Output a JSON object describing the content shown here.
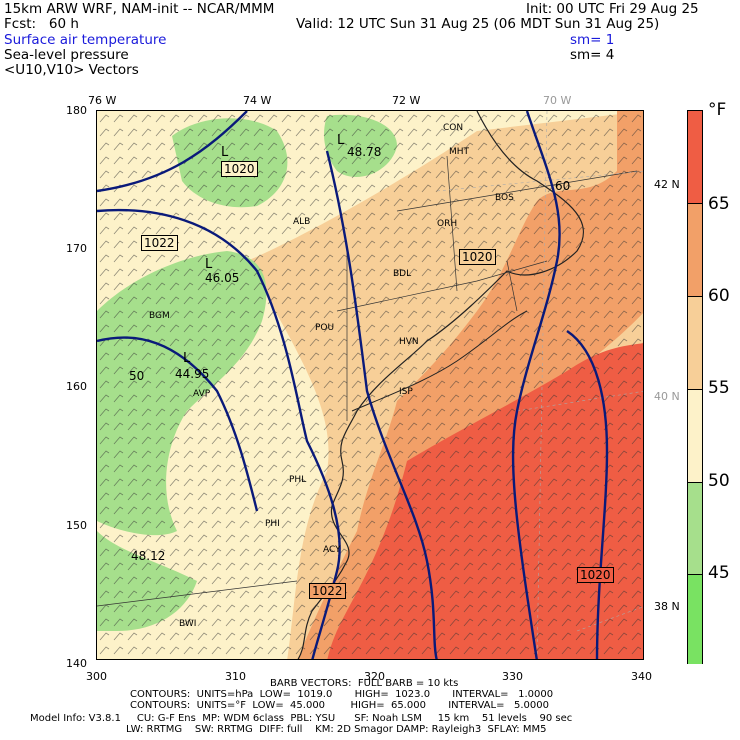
{
  "header": {
    "model_line": "15km ARW WRF, NAM-init -- NCAR/MMM",
    "init": "Init: 00 UTC Fri 29 Aug 25",
    "fcst": "Fcst:   60 h",
    "valid": "Valid: 12 UTC Sun 31 Aug 25 (06 MDT Sun 31 Aug 25)",
    "field1": "Surface air temperature",
    "field1_sm": "sm= 1",
    "field2": "Sea-level pressure",
    "field2_sm": "sm= 4",
    "field3": "<U10,V10> Vectors"
  },
  "map": {
    "lon_labels": [
      "76 W",
      "74 W",
      "72 W",
      "70 W"
    ],
    "lat_labels": [
      "42 N",
      "40 N",
      "38 N"
    ],
    "y_ticks": [
      "180",
      "170",
      "160",
      "150",
      "140"
    ],
    "x_ticks": [
      "300",
      "310",
      "320",
      "330",
      "340"
    ],
    "pressure_boxes": [
      "1020",
      "1022",
      "1020",
      "1022",
      "1020"
    ],
    "low_label": "L",
    "temp_labels": [
      "48.78",
      "46.05",
      "44.95",
      "48.12"
    ],
    "contour_50": "50",
    "contour_60": "60",
    "stations": [
      "CON",
      "MHT",
      "BOS",
      "ORH",
      "BDL",
      "ALB",
      "HVN",
      "POU",
      "ISP",
      "BGM",
      "AVP",
      "PHL",
      "PHI",
      "ACY",
      "BWI"
    ],
    "colors": {
      "red": "#ef5d44",
      "orange": "#f2a068",
      "peach": "#f7cf98",
      "cream": "#fdf2c9",
      "green": "#a6df8c",
      "bright_green": "#79e262",
      "isobar": "#0a1a7a"
    }
  },
  "colorbar": {
    "unit": "°F",
    "labels": [
      "65",
      "60",
      "55",
      "50",
      "45"
    ]
  },
  "footer": {
    "barb": "BARB VECTORS:  FULL BARB = 10 kts",
    "contours1": "CONTOURS:  UNITS=hPa  LOW=  1019.0       HIGH=  1023.0       INTERVAL=   1.0000",
    "contours2": "CONTOURS:  UNITS=°F  LOW=  45.000        HIGH=  65.000       INTERVAL=   5.0000",
    "model_info": "Model Info: V3.8.1     CU: G-F Ens  MP: WDM 6class  PBL: YSU      SF: Noah LSM     15 km    51 levels    90 sec",
    "model_info2": "LW: RRTMG    SW: RRTMG  DIFF: full    KM: 2D Smagor DAMP: Rayleigh3  SFLAY: MM5"
  }
}
